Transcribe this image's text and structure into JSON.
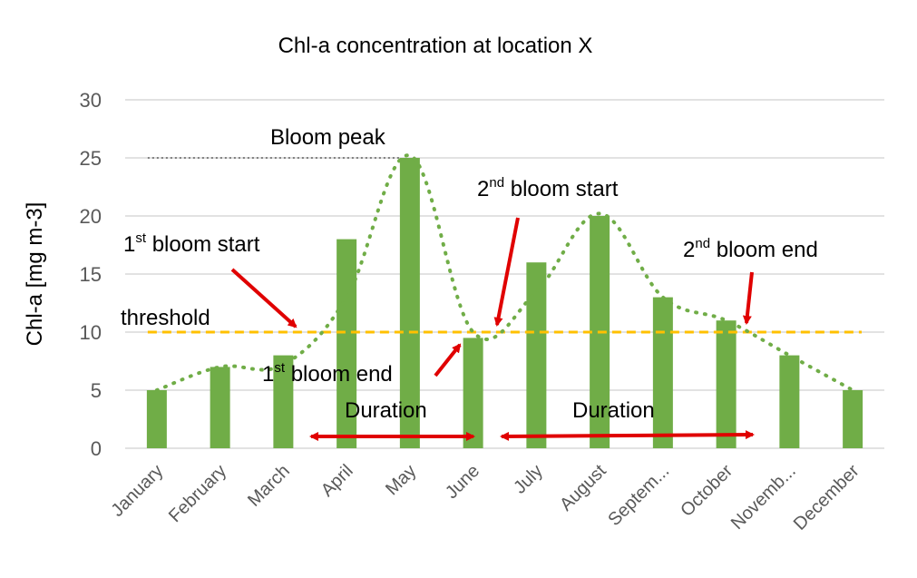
{
  "chart_data": {
    "type": "bar",
    "title": "Chl-a concentration at location X",
    "ylabel": "Chl-a [mg m-3]",
    "xlabel": "",
    "ylim": [
      0,
      30
    ],
    "yticks": [
      0,
      5,
      10,
      15,
      20,
      25,
      30
    ],
    "grid": true,
    "categories": [
      "January",
      "February",
      "March",
      "April",
      "May",
      "June",
      "July",
      "August",
      "Septem...",
      "October",
      "Novemb...",
      "December"
    ],
    "values": [
      5,
      7,
      8,
      18,
      25,
      9.5,
      16,
      20,
      13,
      11,
      8,
      5
    ],
    "trend_line": [
      5,
      7,
      7.2,
      13,
      25.2,
      10,
      13.5,
      20.2,
      13,
      11,
      8,
      5
    ],
    "threshold": 10,
    "peak_reference": 25,
    "colors": {
      "bar": "#70AD47",
      "trend": "#70AD47",
      "threshold": "#FFC000",
      "arrow": "#E00000",
      "peak_line": "#7F7F7F",
      "grid": "#D9D9D9"
    },
    "annotations": {
      "bloom_peak": "Bloom peak",
      "threshold": "threshold",
      "first_start": {
        "pre": "1",
        "sup": "st",
        "post": " bloom start"
      },
      "first_end": {
        "pre": "1",
        "sup": "st",
        "post": " bloom end"
      },
      "second_start": {
        "pre": "2",
        "sup": "nd",
        "post": " bloom start"
      },
      "second_end": {
        "pre": "2",
        "sup": "nd",
        "post": " bloom end"
      },
      "duration_1": "Duration",
      "duration_2": "Duration"
    }
  }
}
